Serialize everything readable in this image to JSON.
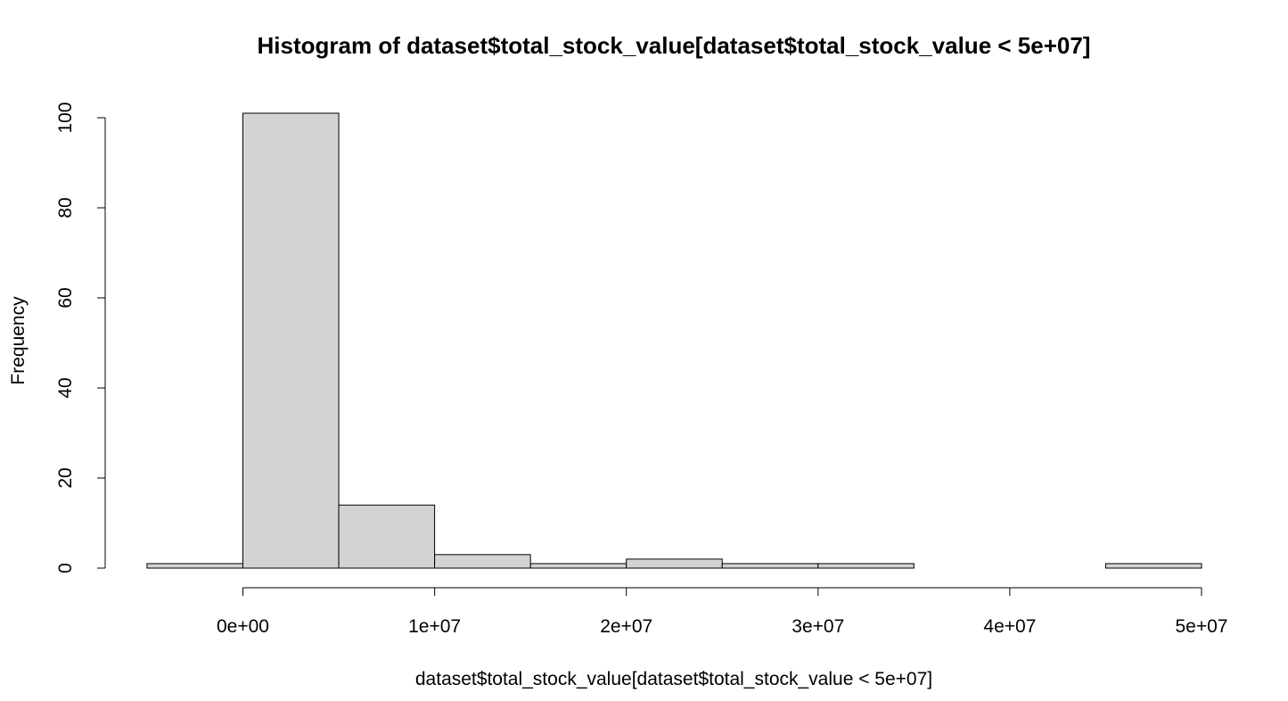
{
  "chart_data": {
    "type": "bar",
    "title": "Histogram of dataset$total_stock_value[dataset$total_stock_value < 5e+07]",
    "xlabel": "dataset$total_stock_value[dataset$total_stock_value < 5e+07]",
    "ylabel": "Frequency",
    "bin_width": 5000000,
    "bins": [
      {
        "start": -5000000,
        "end": 0,
        "count": 1
      },
      {
        "start": 0,
        "end": 5000000,
        "count": 101
      },
      {
        "start": 5000000,
        "end": 10000000,
        "count": 14
      },
      {
        "start": 10000000,
        "end": 15000000,
        "count": 3
      },
      {
        "start": 15000000,
        "end": 20000000,
        "count": 1
      },
      {
        "start": 20000000,
        "end": 25000000,
        "count": 2
      },
      {
        "start": 25000000,
        "end": 30000000,
        "count": 1
      },
      {
        "start": 30000000,
        "end": 35000000,
        "count": 1
      },
      {
        "start": 35000000,
        "end": 40000000,
        "count": 0
      },
      {
        "start": 40000000,
        "end": 45000000,
        "count": 0
      },
      {
        "start": 45000000,
        "end": 50000000,
        "count": 1
      }
    ],
    "xlim": [
      -5000000,
      50000000
    ],
    "ylim": [
      0,
      100
    ],
    "x_ticks": [
      {
        "value": 0,
        "label": "0e+00"
      },
      {
        "value": 10000000,
        "label": "1e+07"
      },
      {
        "value": 20000000,
        "label": "2e+07"
      },
      {
        "value": 30000000,
        "label": "3e+07"
      },
      {
        "value": 40000000,
        "label": "4e+07"
      },
      {
        "value": 50000000,
        "label": "5e+07"
      }
    ],
    "y_ticks": [
      {
        "value": 0,
        "label": "0"
      },
      {
        "value": 20,
        "label": "20"
      },
      {
        "value": 40,
        "label": "40"
      },
      {
        "value": 60,
        "label": "60"
      },
      {
        "value": 80,
        "label": "80"
      },
      {
        "value": 100,
        "label": "100"
      }
    ],
    "grid": false,
    "colors": {
      "bar_fill": "#d3d3d3",
      "bar_stroke": "#000000",
      "background": "#ffffff"
    }
  }
}
